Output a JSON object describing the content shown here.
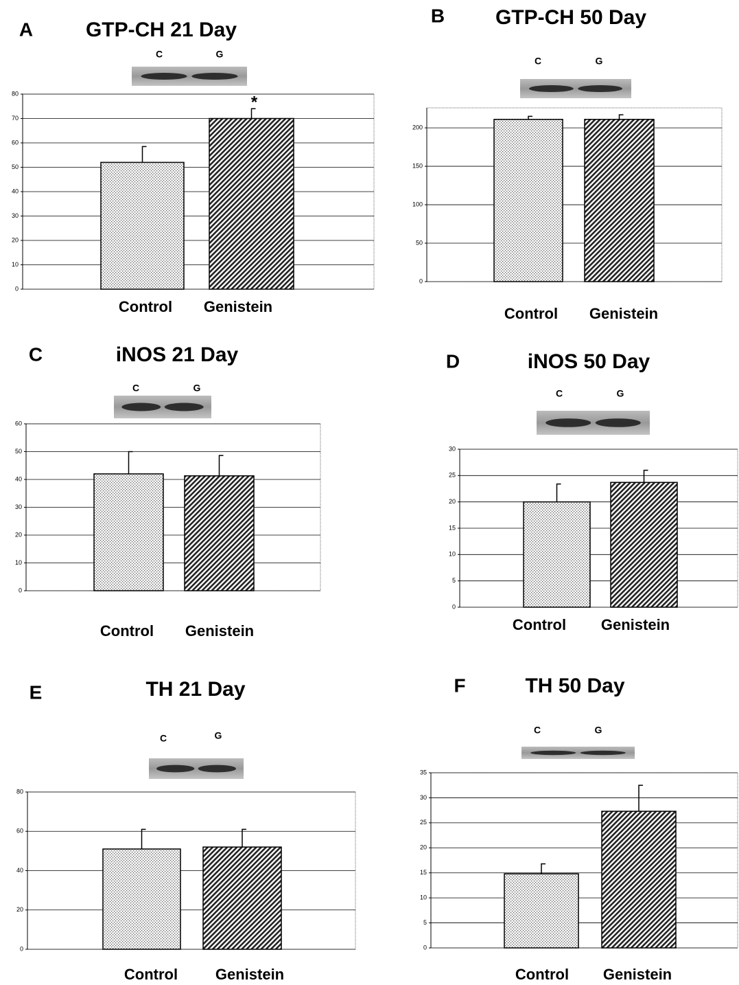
{
  "chart_data": [
    {
      "type": "bar",
      "panel": "A",
      "title": "GTP-CH 21 Day",
      "blot_labels": [
        "C",
        "G"
      ],
      "categories": [
        "Control",
        "Genistein"
      ],
      "values": [
        52,
        70
      ],
      "errors": [
        6.5,
        4
      ],
      "annotation": "*",
      "ylim": [
        0,
        80
      ],
      "yticks": [
        0,
        10,
        20,
        30,
        40,
        50,
        60,
        70,
        80
      ],
      "grid": true
    },
    {
      "type": "bar",
      "panel": "B",
      "title": "GTP-CH 50 Day",
      "blot_labels": [
        "C",
        "G"
      ],
      "categories": [
        "Control",
        "Genistein"
      ],
      "values": [
        211,
        211
      ],
      "errors": [
        4,
        6
      ],
      "ylim": [
        0,
        226
      ],
      "yticks": [
        0,
        50,
        100,
        150,
        200
      ],
      "grid": true
    },
    {
      "type": "bar",
      "panel": "C",
      "title": "iNOS 21 Day",
      "blot_labels": [
        "C",
        "G"
      ],
      "categories": [
        "Control",
        "Genistein"
      ],
      "values": [
        42,
        41.3
      ],
      "errors": [
        8,
        7.3
      ],
      "ylim": [
        0,
        60
      ],
      "yticks": [
        0,
        10,
        20,
        30,
        40,
        50,
        60
      ],
      "grid": true
    },
    {
      "type": "bar",
      "panel": "D",
      "title": "iNOS 50 Day",
      "blot_labels": [
        "C",
        "G"
      ],
      "categories": [
        "Control",
        "Genistein"
      ],
      "values": [
        20,
        23.7
      ],
      "errors": [
        3.4,
        2.3
      ],
      "ylim": [
        0,
        30
      ],
      "yticks": [
        0,
        5,
        10,
        15,
        20,
        25,
        30
      ],
      "grid": true
    },
    {
      "type": "bar",
      "panel": "E",
      "title": "TH 21 Day",
      "blot_labels": [
        "C",
        "G"
      ],
      "categories": [
        "Control",
        "Genistein"
      ],
      "values": [
        51,
        52
      ],
      "errors": [
        10,
        9
      ],
      "ylim": [
        0,
        80
      ],
      "yticks": [
        0,
        20,
        40,
        60,
        80
      ],
      "grid": true
    },
    {
      "type": "bar",
      "panel": "F",
      "title": "TH 50 Day",
      "blot_labels": [
        "C",
        "G"
      ],
      "categories": [
        "Control",
        "Genistein"
      ],
      "values": [
        14.8,
        27.3
      ],
      "errors": [
        2,
        5.2
      ],
      "ylim": [
        0,
        35
      ],
      "yticks": [
        0,
        5,
        10,
        15,
        20,
        25,
        30,
        35
      ],
      "grid": true
    }
  ]
}
